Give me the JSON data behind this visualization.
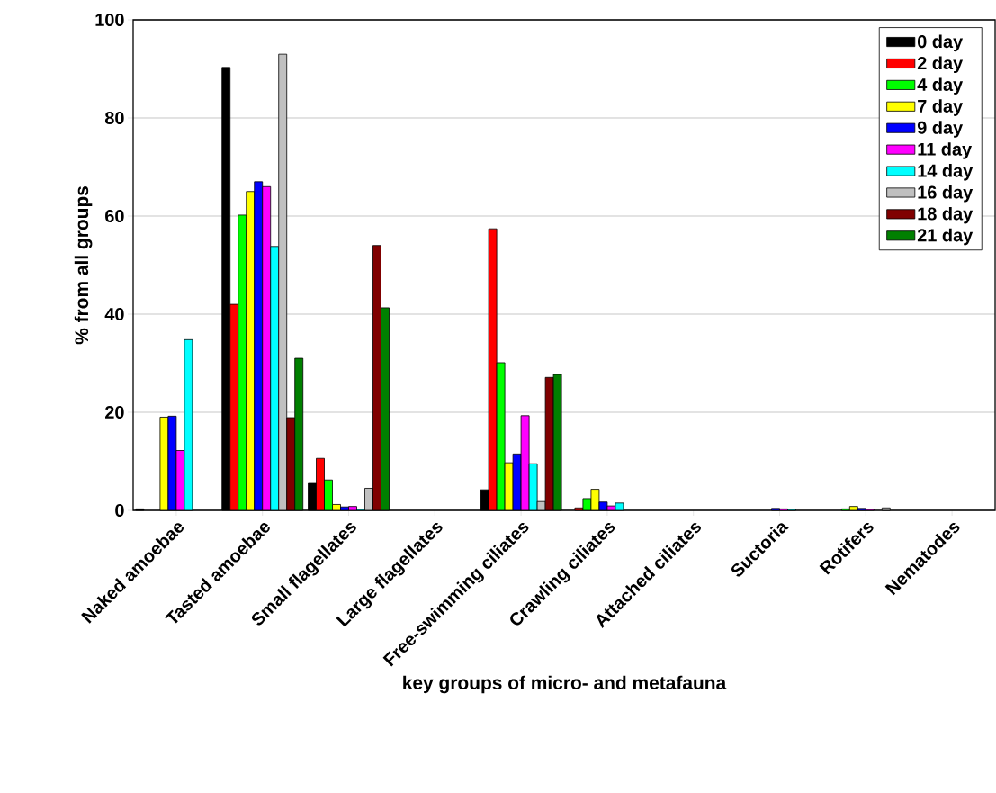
{
  "chart_data": {
    "type": "bar",
    "xlabel": "key groups of micro- and metafauna",
    "ylabel": "% from all groups",
    "categories": [
      "Naked amoebae",
      "Tasted amoebae",
      "Small flagellates",
      "Large flagellates",
      "Free-swimming ciliates",
      "Crawling ciliates",
      "Attached ciliates",
      "Suctoria",
      "Rotifers",
      "Nematodes"
    ],
    "series": [
      {
        "name": "0 day",
        "color": "#000000",
        "values": [
          0.3,
          90.3,
          5.5,
          null,
          4.2,
          null,
          null,
          null,
          null,
          null
        ]
      },
      {
        "name": "2 day",
        "color": "#ff0000",
        "values": [
          null,
          42,
          10.6,
          null,
          57.4,
          0.5,
          null,
          null,
          null,
          null
        ]
      },
      {
        "name": "4 day",
        "color": "#00ff00",
        "values": [
          null,
          60.2,
          6.2,
          null,
          30.1,
          2.4,
          null,
          null,
          0.3,
          null
        ]
      },
      {
        "name": "7 day",
        "color": "#ffff00",
        "values": [
          19,
          65,
          1.2,
          null,
          9.7,
          4.3,
          null,
          null,
          0.8,
          null
        ]
      },
      {
        "name": "9 day",
        "color": "#0000ff",
        "values": [
          19.2,
          67,
          0.7,
          null,
          11.5,
          1.7,
          null,
          0.4,
          0.4,
          null
        ]
      },
      {
        "name": "11 day",
        "color": "#ff00ff",
        "values": [
          12.2,
          66,
          0.8,
          null,
          19.3,
          0.9,
          null,
          0.3,
          0.2,
          null
        ]
      },
      {
        "name": "14 day",
        "color": "#00ffff",
        "values": [
          34.8,
          53.8,
          0.2,
          null,
          9.5,
          1.5,
          null,
          0.2,
          null,
          null
        ]
      },
      {
        "name": "16 day",
        "color": "#c0c0c0",
        "values": [
          null,
          93,
          4.5,
          null,
          1.8,
          null,
          null,
          null,
          0.5,
          null
        ]
      },
      {
        "name": "18 day",
        "color": "#800000",
        "values": [
          null,
          18.9,
          54,
          null,
          27.1,
          null,
          null,
          null,
          null,
          null
        ]
      },
      {
        "name": "21 day",
        "color": "#008000",
        "values": [
          null,
          31,
          41.3,
          null,
          27.7,
          null,
          null,
          null,
          null,
          null
        ]
      }
    ],
    "ylim": [
      0,
      100
    ],
    "yticks": [
      0,
      20,
      40,
      60,
      80,
      100
    ],
    "grid": "y",
    "legend": "top right"
  }
}
